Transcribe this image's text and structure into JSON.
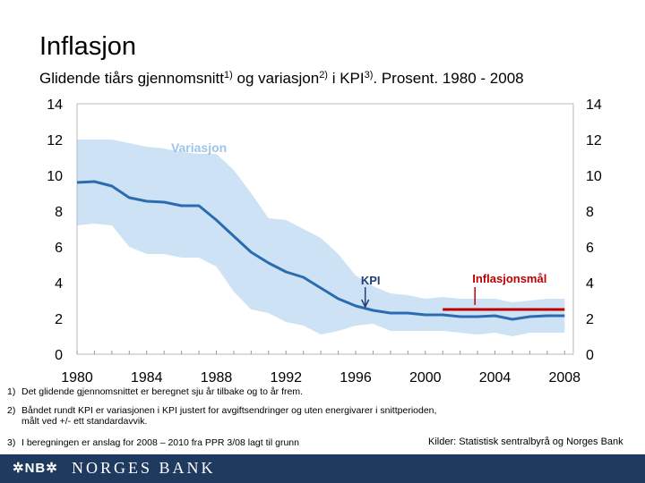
{
  "header": {
    "title": "Inflasjon",
    "subtitle_parts": [
      "Glidende tiårs gjennomsnitt",
      "1)",
      " og variasjon",
      "2)",
      " i KPI",
      "3)",
      ". Prosent. 1980 - 2008"
    ]
  },
  "chart_data": {
    "type": "line",
    "x_ticks": [
      "1980",
      "1984",
      "1988",
      "1992",
      "1996",
      "2000",
      "2004",
      "2008"
    ],
    "xlim": [
      1980,
      2008.5
    ],
    "ylim": [
      0,
      14
    ],
    "y_ticks_left": [
      "0",
      "2",
      "4",
      "6",
      "8",
      "10",
      "12",
      "14"
    ],
    "y_ticks_right": [
      "0",
      "2",
      "4",
      "6",
      "8",
      "10",
      "12",
      "14"
    ],
    "grid": false,
    "series": [
      {
        "name": "KPI",
        "color": "#2b6cb0",
        "x": [
          1980,
          1981,
          1982,
          1983,
          1984,
          1985,
          1986,
          1987,
          1988,
          1989,
          1990,
          1991,
          1992,
          1993,
          1994,
          1995,
          1996,
          1997,
          1998,
          1999,
          2000,
          2001,
          2002,
          2003,
          2004,
          2005,
          2006,
          2007,
          2008
        ],
        "values": [
          9.6,
          9.65,
          9.4,
          8.75,
          8.55,
          8.5,
          8.3,
          8.3,
          7.5,
          6.6,
          5.7,
          5.1,
          4.6,
          4.3,
          3.7,
          3.1,
          2.7,
          2.45,
          2.3,
          2.3,
          2.2,
          2.2,
          2.1,
          2.1,
          2.15,
          1.95,
          2.1,
          2.15,
          2.15
        ]
      }
    ],
    "band": {
      "name": "Variasjon",
      "color": "#cde3f5",
      "x": [
        1980,
        1981,
        1982,
        1983,
        1984,
        1985,
        1986,
        1987,
        1988,
        1989,
        1990,
        1991,
        1992,
        1993,
        1994,
        1995,
        1996,
        1997,
        1998,
        1999,
        2000,
        2001,
        2002,
        2003,
        2004,
        2005,
        2006,
        2007,
        2008
      ],
      "upper": [
        12.0,
        12.0,
        12.0,
        11.8,
        11.6,
        11.5,
        11.3,
        11.2,
        11.2,
        10.3,
        9.0,
        7.6,
        7.5,
        7.0,
        6.5,
        5.6,
        4.4,
        3.8,
        3.4,
        3.3,
        3.1,
        3.2,
        3.1,
        3.1,
        3.1,
        2.9,
        3.0,
        3.1,
        3.1
      ],
      "lower": [
        7.2,
        7.3,
        7.2,
        6.0,
        5.6,
        5.6,
        5.4,
        5.4,
        4.9,
        3.5,
        2.5,
        2.3,
        1.8,
        1.6,
        1.1,
        1.3,
        1.6,
        1.7,
        1.3,
        1.3,
        1.3,
        1.3,
        1.2,
        1.1,
        1.2,
        1.0,
        1.2,
        1.2,
        1.2
      ]
    },
    "target": {
      "label": "Inflasjonsmål",
      "value": 2.5,
      "x_start": 2001,
      "x_end": 2008,
      "color": "#c00000"
    },
    "annotations": [
      {
        "text": "Variasjon",
        "color": "#9ec5e8"
      },
      {
        "text": "KPI",
        "color": "#1f3f75"
      },
      {
        "text": "Inflasjonsmål",
        "color": "#c00000"
      }
    ]
  },
  "footnotes": {
    "n1": {
      "num": "1)",
      "text": "Det glidende gjennomsnittet  er beregnet sju år tilbake og to år frem."
    },
    "n2": {
      "num": "2)",
      "text": "Båndet rundt KPI er variasjonen i KPI justert for avgiftsendringer og uten energivarer i snittperioden,",
      "text2": "målt ved +/- ett standardavvik."
    },
    "n3": {
      "num": "3)",
      "text": "I beregningen er anslag for 2008 – 2010 fra PPR 3/08 lagt til grunn"
    }
  },
  "source": "Kilder: Statistisk sentralbyrå og Norges Bank",
  "footer": {
    "logo_mark": "✲NB✲",
    "logo_text": "NORGES BANK",
    "background": "#1f3a5f"
  }
}
